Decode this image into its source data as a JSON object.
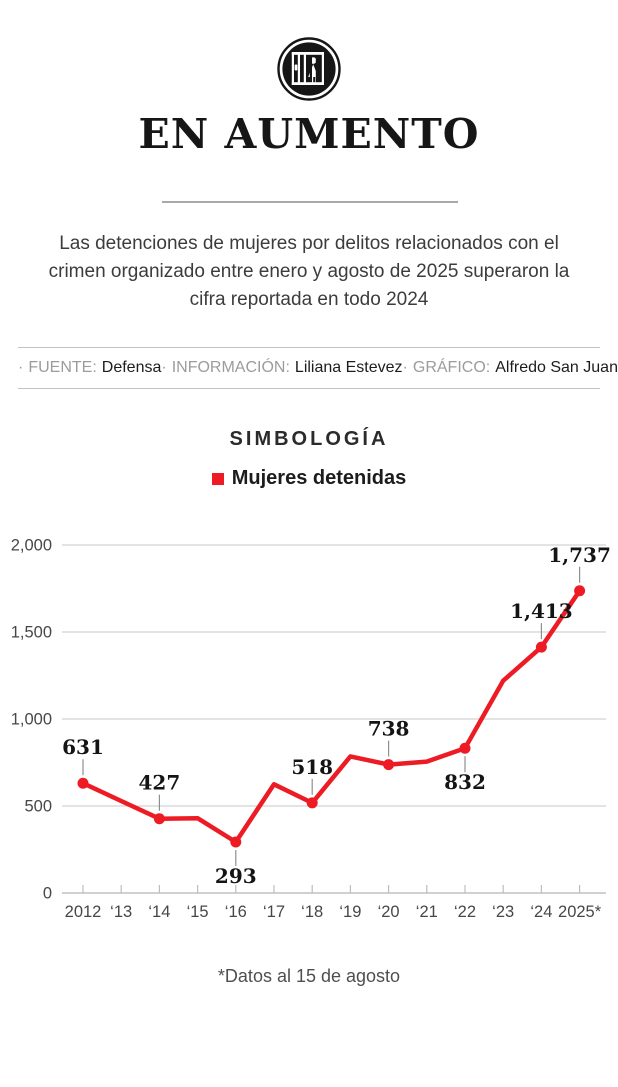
{
  "header": {
    "icon": "woman-behind-bars-icon",
    "title": "EN AUMENTO",
    "subtitle": "Las detenciones de mujeres por delitos relacionados con el crimen organizado entre enero y agosto de 2025 superaron la cifra reportada en todo 2024"
  },
  "credits": {
    "separator": "·",
    "items": [
      {
        "label": "FUENTE:",
        "value": "Defensa"
      },
      {
        "label": "INFORMACIÓN:",
        "value": "Liliana Estevez"
      },
      {
        "label": "GRÁFICO:",
        "value": "Alfredo San Juan"
      }
    ]
  },
  "legend": {
    "title": "SIMBOLOGÍA",
    "series_label": "Mujeres detenidas",
    "series_color": "#ed1c24"
  },
  "chart_data": {
    "type": "line",
    "title": "EN AUMENTO",
    "series_name": "Mujeres detenidas",
    "categories": [
      "2012",
      "‘13",
      "‘14",
      "‘15",
      "‘16",
      "‘17",
      "‘18",
      "‘19",
      "‘20",
      "‘21",
      "‘22",
      "‘23",
      "‘24",
      "2025*"
    ],
    "values": [
      631,
      529,
      427,
      430,
      293,
      625,
      518,
      785,
      738,
      755,
      832,
      1220,
      1413,
      1737
    ],
    "labeled_points": [
      {
        "index": 0,
        "label": "631",
        "position": "above"
      },
      {
        "index": 2,
        "label": "427",
        "position": "above"
      },
      {
        "index": 4,
        "label": "293",
        "position": "below"
      },
      {
        "index": 6,
        "label": "518",
        "position": "above"
      },
      {
        "index": 8,
        "label": "738",
        "position": "above"
      },
      {
        "index": 10,
        "label": "832",
        "position": "below"
      },
      {
        "index": 12,
        "label": "1,413",
        "position": "above"
      },
      {
        "index": 13,
        "label": "1,737",
        "position": "above"
      }
    ],
    "y_ticks": [
      0,
      500,
      1000,
      1500,
      2000
    ],
    "y_tick_labels": [
      "0",
      "500",
      "1,000",
      "1,500",
      "2,000"
    ],
    "ylim": [
      0,
      2000
    ],
    "grid": true,
    "legend_position": "top",
    "line_color": "#ed1c24",
    "xlabel": "",
    "ylabel": ""
  },
  "footnote": "*Datos al 15 de agosto"
}
